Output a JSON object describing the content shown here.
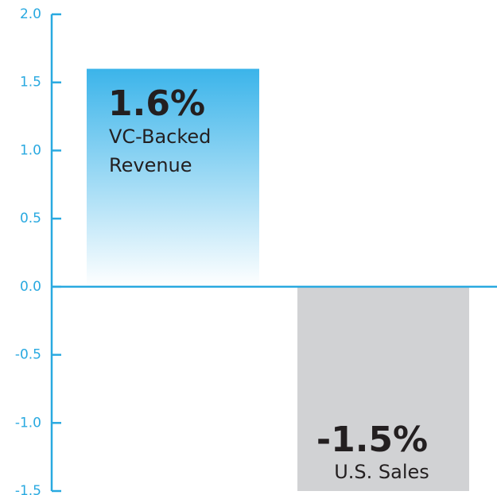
{
  "chart_data": {
    "type": "bar",
    "categories": [
      "VC-Backed Revenue",
      "U.S. Sales"
    ],
    "values": [
      1.6,
      -1.5
    ],
    "value_labels": [
      "1.6%",
      "-1.5%"
    ],
    "colors": [
      "#3bb4ea",
      "#d1d2d4"
    ],
    "axis_color": "#29a9e0",
    "ylim": [
      -1.5,
      2.0
    ],
    "yticks": [
      {
        "value": 2,
        "label": "2.0"
      },
      1.5,
      {
        "value": 1,
        "label": "1.0"
      },
      0.5,
      {
        "value": 0,
        "label": "0.0"
      },
      -0.5,
      {
        "value": -1,
        "label": "-1.0"
      },
      -1.5
    ]
  }
}
